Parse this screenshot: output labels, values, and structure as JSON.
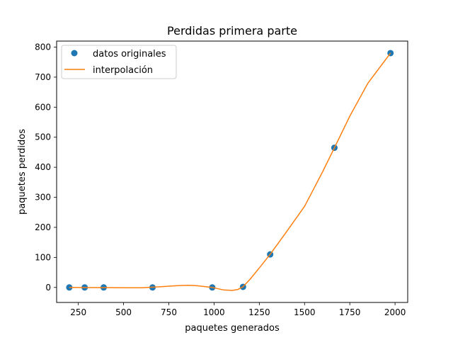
{
  "chart_data": {
    "type": "scatter",
    "title": "Perdidas primera parte",
    "xlabel": "paquetes generados",
    "ylabel": "paquetes perdidos",
    "xlim": [
      130,
      2070
    ],
    "ylim": [
      -50,
      820
    ],
    "xticks": [
      250,
      500,
      750,
      1000,
      1250,
      1500,
      1750,
      2000
    ],
    "yticks": [
      0,
      100,
      200,
      300,
      400,
      500,
      600,
      700,
      800
    ],
    "grid": false,
    "legend_position": "top-left",
    "series": [
      {
        "name": "datos originales",
        "kind": "points",
        "color": "#1f77b4",
        "x": [
          200,
          285,
          390,
          660,
          990,
          1160,
          1310,
          1665,
          1975
        ],
        "y": [
          0,
          0,
          0,
          0,
          0,
          2,
          110,
          465,
          780
        ]
      },
      {
        "name": "interpolación",
        "kind": "line",
        "color": "#ff7f0e",
        "x": [
          200,
          300,
          400,
          500,
          600,
          700,
          800,
          860,
          900,
          990,
          1050,
          1100,
          1130,
          1160,
          1200,
          1250,
          1310,
          1400,
          1500,
          1600,
          1665,
          1750,
          1850,
          1975
        ],
        "y": [
          0,
          -0.5,
          -0.5,
          -1,
          -1,
          2,
          6,
          7,
          6,
          0,
          -8,
          -10,
          -7,
          2,
          28,
          65,
          110,
          185,
          270,
          385,
          465,
          570,
          680,
          780
        ]
      }
    ]
  }
}
